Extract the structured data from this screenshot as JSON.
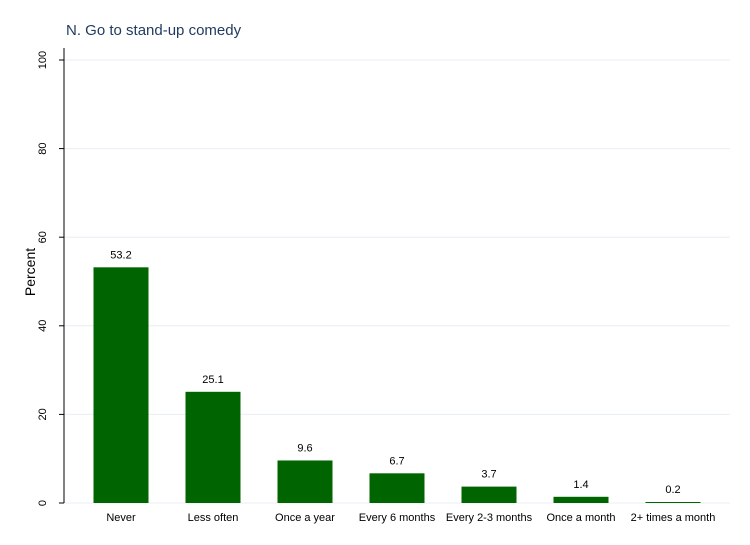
{
  "chart_data": {
    "type": "bar",
    "title": "N. Go to stand-up comedy",
    "xlabel": "",
    "ylabel": "Percent",
    "categories": [
      "Never",
      "Less often",
      "Once a year",
      "Every 6 months",
      "Every 2-3 months",
      "Once a month",
      "2+ times a month"
    ],
    "values": [
      53.2,
      25.1,
      9.6,
      6.7,
      3.7,
      1.4,
      0.2
    ],
    "data_labels": [
      "53.2",
      "25.1",
      "9.6",
      "6.7",
      "3.7",
      "1.4",
      "0.2"
    ],
    "ylim": [
      0,
      100
    ],
    "yticks": [
      0,
      20,
      40,
      60,
      80,
      100
    ],
    "ytick_labels": [
      "0",
      "20",
      "40",
      "60",
      "80",
      "100"
    ],
    "grid": true,
    "bar_color": "#006400",
    "grid_color": "#e8eef3",
    "title_color": "#1f3a5f"
  }
}
